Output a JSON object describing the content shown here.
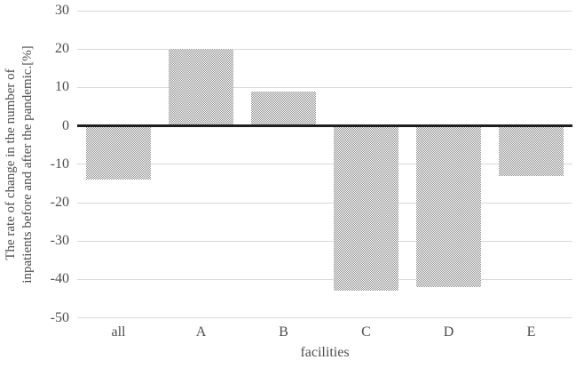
{
  "chart_data": {
    "type": "bar",
    "categories": [
      "all",
      "A",
      "B",
      "C",
      "D",
      "E"
    ],
    "values": [
      -14,
      20,
      9,
      -43,
      -42,
      -13
    ],
    "xlabel": "facilities",
    "ylabel_line1": "The rate of change in the number of",
    "ylabel_line2": "inpatients before and after the pandemic.[%]",
    "ylim": [
      -50,
      30
    ],
    "ytick_step": 10,
    "yticks": [
      30,
      20,
      10,
      0,
      -10,
      -20,
      -30,
      -40,
      -50
    ],
    "grid": true,
    "legend": "none",
    "bar_fill_style": "dotted-checker-pattern",
    "colors": {
      "bar_pattern_gray": "#8f8f8f",
      "bar_pattern_bg": "#ffffff",
      "gridline": "#d9d9d9",
      "zero_axis": "#1f1f1f",
      "text": "#4d4d4d",
      "background": "#ffffff"
    }
  }
}
